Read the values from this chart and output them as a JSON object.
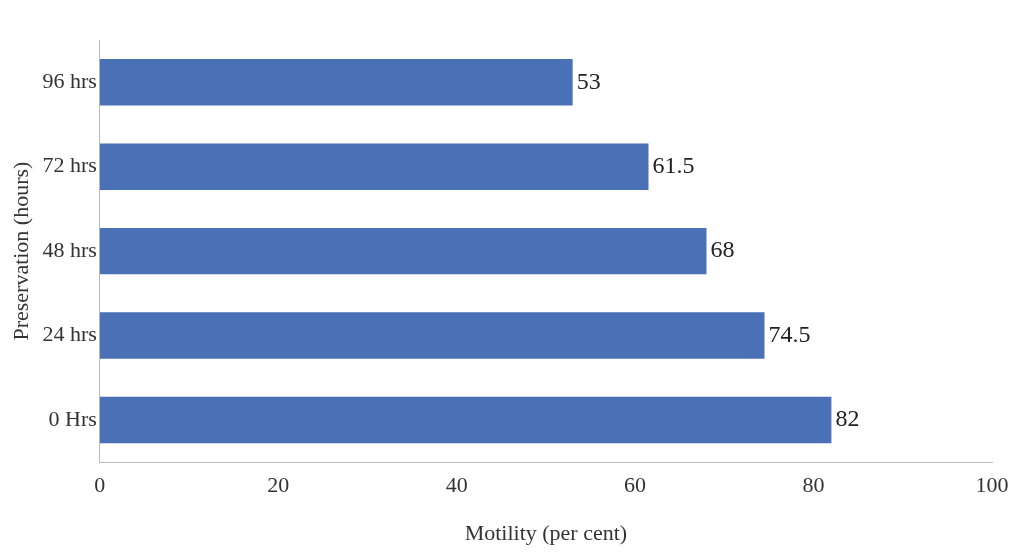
{
  "chart_data": {
    "type": "bar",
    "orientation": "horizontal",
    "xlabel": "Motility (per cent)",
    "ylabel": "Preservation (hours)",
    "categories": [
      "96 hrs",
      "72 hrs",
      "48 hrs",
      "24 hrs",
      "0 Hrs"
    ],
    "values": [
      53,
      61.5,
      68,
      74.5,
      82
    ],
    "color": "#4a70b6",
    "xlim": [
      0,
      100
    ],
    "xticks": [
      0,
      20,
      40,
      60,
      80,
      100
    ],
    "grid": false,
    "data_labels": true
  }
}
